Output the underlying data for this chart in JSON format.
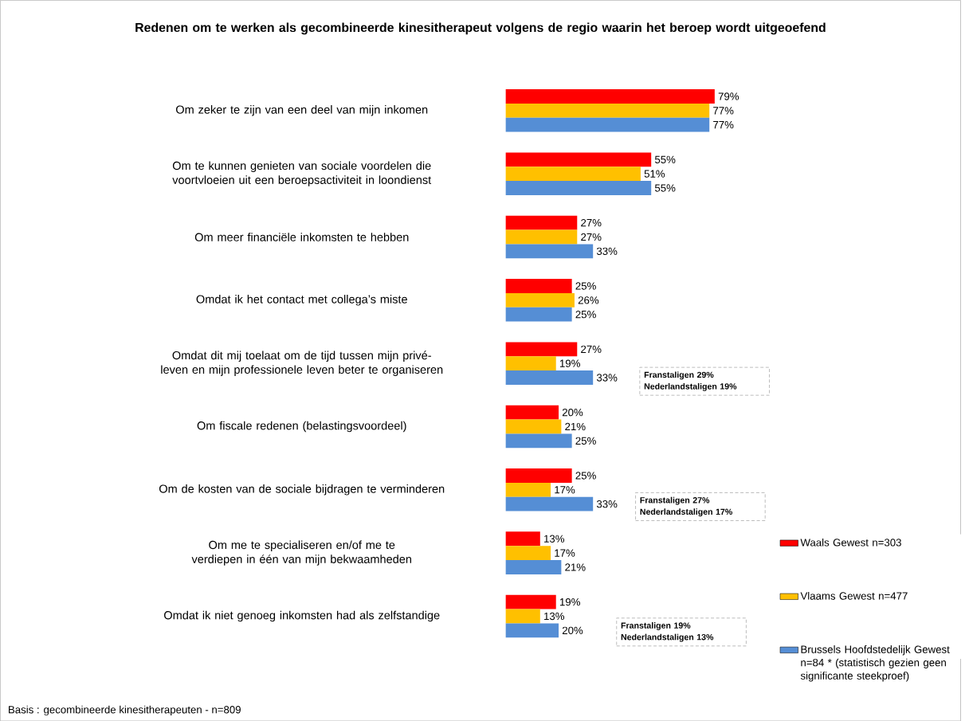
{
  "chart_data": {
    "type": "bar",
    "orientation": "horizontal",
    "title": "Redenen om te werken als gecombineerde kinesitherapeut volgens de regio waarin het beroep wordt uitgeoefend",
    "categories": [
      "Om zeker te zijn van een deel van mijn inkomen",
      "Om te kunnen genieten van sociale voordelen die voortvloeien uit een beroepsactiviteit in loondienst",
      "Om meer financiële inkomsten te hebben",
      "Omdat ik het contact met collega’s miste",
      "Omdat dit mij toelaat om de tijd tussen mijn privé-leven en mijn professionele leven beter te organiseren",
      "Om fiscale redenen (belastingsvoordeel)",
      "Om de kosten van de sociale bijdragen te verminderen",
      "Om me te specialiseren en/of me te verdiepen in één van mijn bekwaamheden",
      "Omdat ik niet genoeg inkomsten had als zelfstandige"
    ],
    "series": [
      {
        "name": "Waals Gewest n=303",
        "color": "#ff0000",
        "values": [
          79,
          55,
          27,
          25,
          27,
          20,
          25,
          13,
          19
        ],
        "value_labels": [
          "79%",
          "55%",
          "27%",
          "25%",
          "27%",
          "20%",
          "25%",
          "13%",
          "19%"
        ]
      },
      {
        "name": "Vlaams Gewest n=477",
        "color": "#ffc000",
        "values": [
          77,
          51,
          27,
          26,
          19,
          21,
          17,
          17,
          13
        ],
        "value_labels": [
          "77%",
          "51%",
          "27%",
          "26%",
          "19%",
          "21%",
          "17%",
          "17%",
          "13%"
        ]
      },
      {
        "name": "Brussels Hoofdstedelijk Gewest n=84 * (statistisch gezien geen significante steekproef)",
        "color": "#558ed5",
        "values": [
          77,
          55,
          33,
          25,
          33,
          25,
          33,
          21,
          20
        ],
        "value_labels": [
          "77%",
          "55%",
          "33%",
          "25%",
          "33%",
          "25%",
          "33%",
          "21%",
          "20%"
        ]
      }
    ],
    "annotations": [
      "**Franstaligen 29% Nederlandstaligen 19%**",
      "**Franstaligen 27% Nederlandstaligen 17%**",
      "**Franstaligen 19% Nederlandstaligen 13%**",
      "Basis : gecombineerde kinesitherapeuten - n=809"
    ],
    "legend": "right"
  }
}
